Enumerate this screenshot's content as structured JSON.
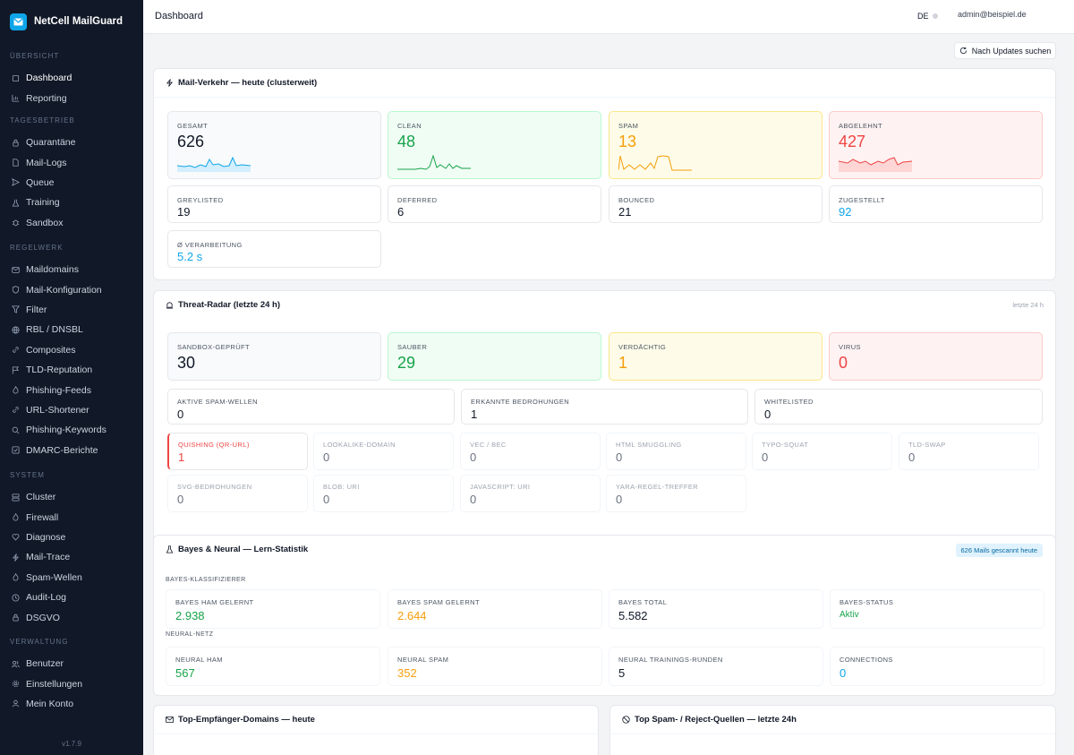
{
  "app": {
    "name": "NetCell MailGuard",
    "version": "v1.7.9"
  },
  "sidebar": {
    "sections": [
      {
        "title": "Übersicht",
        "items": [
          {
            "label": "Dashboard",
            "icon": "home-icon"
          },
          {
            "label": "Reporting",
            "icon": "chart-icon"
          }
        ]
      },
      {
        "title": "Tagesbetrieb",
        "items": [
          {
            "label": "Quarantäne",
            "icon": "lock-icon"
          },
          {
            "label": "Mail-Logs",
            "icon": "document-icon"
          },
          {
            "label": "Queue",
            "icon": "send-icon"
          },
          {
            "label": "Training",
            "icon": "flask-icon"
          },
          {
            "label": "Sandbox",
            "icon": "bug-icon"
          }
        ]
      },
      {
        "title": "Regelwerk",
        "items": [
          {
            "label": "Maildomains",
            "icon": "mail-icon"
          },
          {
            "label": "Mail-Konfiguration",
            "icon": "shield-icon"
          },
          {
            "label": "Filter",
            "icon": "filter-icon"
          },
          {
            "label": "RBL / DNSBL",
            "icon": "globe-icon"
          },
          {
            "label": "Composites",
            "icon": "link-icon"
          },
          {
            "label": "TLD-Reputation",
            "icon": "flag-icon"
          },
          {
            "label": "Phishing-Feeds",
            "icon": "flame-icon"
          },
          {
            "label": "URL-Shortener",
            "icon": "link-icon"
          },
          {
            "label": "Phishing-Keywords",
            "icon": "search-icon"
          },
          {
            "label": "DMARC-Berichte",
            "icon": "check-square-icon"
          }
        ]
      },
      {
        "title": "System",
        "items": [
          {
            "label": "Cluster",
            "icon": "server-icon"
          },
          {
            "label": "Firewall",
            "icon": "flame-icon"
          },
          {
            "label": "Diagnose",
            "icon": "heart-icon"
          },
          {
            "label": "Mail-Trace",
            "icon": "bolt-icon"
          },
          {
            "label": "Spam-Wellen",
            "icon": "flame-icon"
          },
          {
            "label": "Audit-Log",
            "icon": "clock-icon"
          },
          {
            "label": "DSGVO",
            "icon": "lock-icon"
          }
        ]
      },
      {
        "title": "Verwaltung",
        "items": [
          {
            "label": "Benutzer",
            "icon": "users-icon"
          },
          {
            "label": "Einstellungen",
            "icon": "gear-icon"
          },
          {
            "label": "Mein Konto",
            "icon": "user-icon"
          }
        ]
      }
    ]
  },
  "topbar": {
    "title": "Dashboard",
    "lang": "DE",
    "user": "admin@beispiel.de"
  },
  "update_button": "Nach Updates suchen",
  "mail_traffic": {
    "title": "Mail-Verkehr — heute (clusterweit)",
    "main": [
      {
        "label": "GESAMT",
        "value": "626"
      },
      {
        "label": "CLEAN",
        "value": "48"
      },
      {
        "label": "SPAM",
        "value": "13"
      },
      {
        "label": "ABGELEHNT",
        "value": "427"
      }
    ],
    "secondary": [
      {
        "label": "GREYLISTED",
        "value": "19"
      },
      {
        "label": "DEFERRED",
        "value": "6"
      },
      {
        "label": "BOUNCED",
        "value": "21"
      },
      {
        "label": "ZUGESTELLT",
        "value": "92"
      },
      {
        "label": "Ø VERARBEITUNG",
        "value": "5.2 s"
      }
    ]
  },
  "threat_radar": {
    "title": "Threat-Radar (letzte 24 h)",
    "period": "letzte 24 h",
    "main": [
      {
        "label": "SANDBOX-GEPRÜFT",
        "value": "30"
      },
      {
        "label": "SAUBER",
        "value": "29"
      },
      {
        "label": "VERDÄCHTIG",
        "value": "1"
      },
      {
        "label": "VIRUS",
        "value": "0"
      }
    ],
    "middle": [
      {
        "label": "AKTIVE SPAM-WELLEN",
        "value": "0"
      },
      {
        "label": "ERKANNTE BEDROHUNGEN",
        "value": "1"
      },
      {
        "label": "WHITELISTED",
        "value": "0"
      }
    ],
    "detectors": [
      {
        "label": "QUISHING (QR-URL)",
        "value": "1"
      },
      {
        "label": "LOOKALIKE-DOMAIN",
        "value": "0"
      },
      {
        "label": "VEC / BEC",
        "value": "0"
      },
      {
        "label": "HTML SMUGGLING",
        "value": "0"
      },
      {
        "label": "TYPO-SQUAT",
        "value": "0"
      },
      {
        "label": "TLD-SWAP",
        "value": "0"
      },
      {
        "label": "SVG-BEDROHUNGEN",
        "value": "0"
      },
      {
        "label": "BLOB: URI",
        "value": "0"
      },
      {
        "label": "JAVASCRIPT: URI",
        "value": "0"
      },
      {
        "label": "YARA-REGEL-TREFFER",
        "value": "0"
      }
    ]
  },
  "bayes": {
    "title": "Bayes & Neural — Lern-Statistik",
    "badge": "626 Mails gescannt heute",
    "bayes_section": "BAYES-KLASSIFIZIERER",
    "bayes_stats": [
      {
        "label": "BAYES HAM GELERNT",
        "value": "2.938"
      },
      {
        "label": "BAYES SPAM GELERNT",
        "value": "2.644"
      },
      {
        "label": "BAYES TOTAL",
        "value": "5.582"
      },
      {
        "label": "BAYES-STATUS",
        "value": "Aktiv"
      }
    ],
    "neural_section": "NEURAL-NETZ",
    "neural_stats": [
      {
        "label": "NEURAL HAM",
        "value": "567"
      },
      {
        "label": "NEURAL SPAM",
        "value": "352"
      },
      {
        "label": "NEURAL TRAININGS-RUNDEN",
        "value": "5"
      },
      {
        "label": "CONNECTIONS",
        "value": "0"
      }
    ]
  },
  "bottom": {
    "left_title": "Top-Empfänger-Domains — heute",
    "right_title": "Top Spam- / Reject-Quellen — letzte 24h"
  },
  "colors": {
    "accent": "#0ea5e9",
    "sidebar_bg": "#111827",
    "green": "#16a34a",
    "amber": "#f59e0b",
    "red": "#ef4444"
  }
}
